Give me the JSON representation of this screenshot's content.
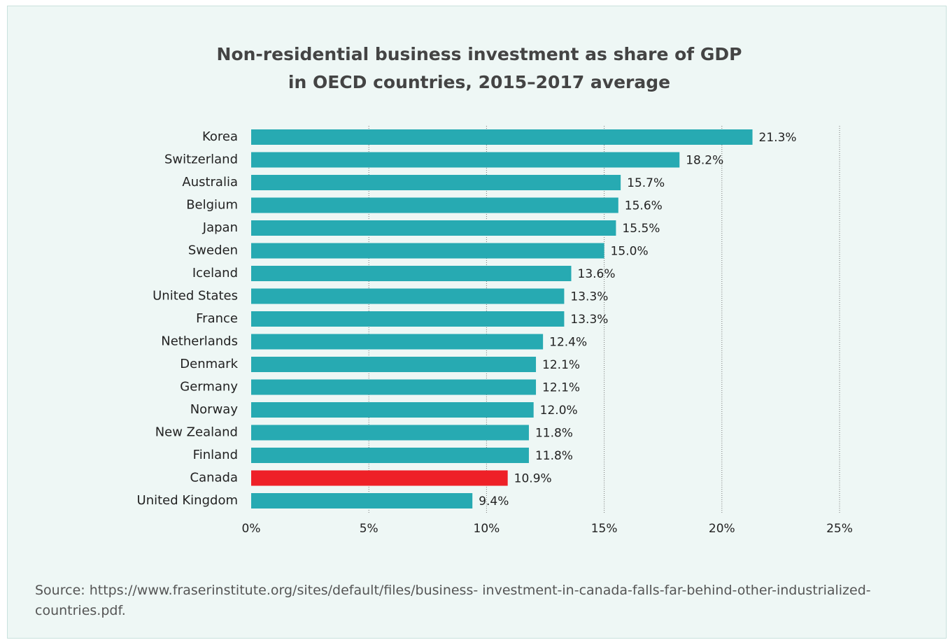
{
  "chart_data": {
    "type": "hbar",
    "title": "Non-residential business investment as share of GDP in OECD countries, 2015–2017 average",
    "categories": [
      "Korea",
      "Switzerland",
      "Australia",
      "Belgium",
      "Japan",
      "Sweden",
      "Iceland",
      "United States",
      "France",
      "Netherlands",
      "Denmark",
      "Germany",
      "Norway",
      "New Zealand",
      "Finland",
      "Canada",
      "United Kingdom"
    ],
    "values": [
      21.3,
      18.2,
      15.7,
      15.6,
      15.5,
      15.0,
      13.6,
      13.3,
      13.3,
      12.4,
      12.1,
      12.1,
      12.0,
      11.8,
      11.8,
      10.9,
      9.4
    ],
    "value_labels": [
      "21.3%",
      "18.2%",
      "15.7%",
      "15.6%",
      "15.5%",
      "15.0%",
      "13.6%",
      "13.3%",
      "13.3%",
      "12.4%",
      "12.1%",
      "12.1%",
      "12.0%",
      "11.8%",
      "11.8%",
      "10.9%",
      "9.4%"
    ],
    "colors": [
      "#27aab2",
      "#27aab2",
      "#27aab2",
      "#27aab2",
      "#27aab2",
      "#27aab2",
      "#27aab2",
      "#27aab2",
      "#27aab2",
      "#27aab2",
      "#27aab2",
      "#27aab2",
      "#27aab2",
      "#27aab2",
      "#27aab2",
      "#ee2027",
      "#27aab2"
    ],
    "xlim": [
      0,
      25
    ],
    "xticks": [
      {
        "value": 0,
        "label": "0%"
      },
      {
        "value": 5,
        "label": "5%"
      },
      {
        "value": 10,
        "label": "10%"
      },
      {
        "value": 15,
        "label": "15%"
      },
      {
        "value": 20,
        "label": "20%"
      },
      {
        "value": 25,
        "label": "25%"
      }
    ],
    "grid": true,
    "source": "Source: https://www.fraserinstitute.org/sites/default/files/business- investment-in-canada-falls-far-behind-other-industrialized-countries.pdf."
  }
}
